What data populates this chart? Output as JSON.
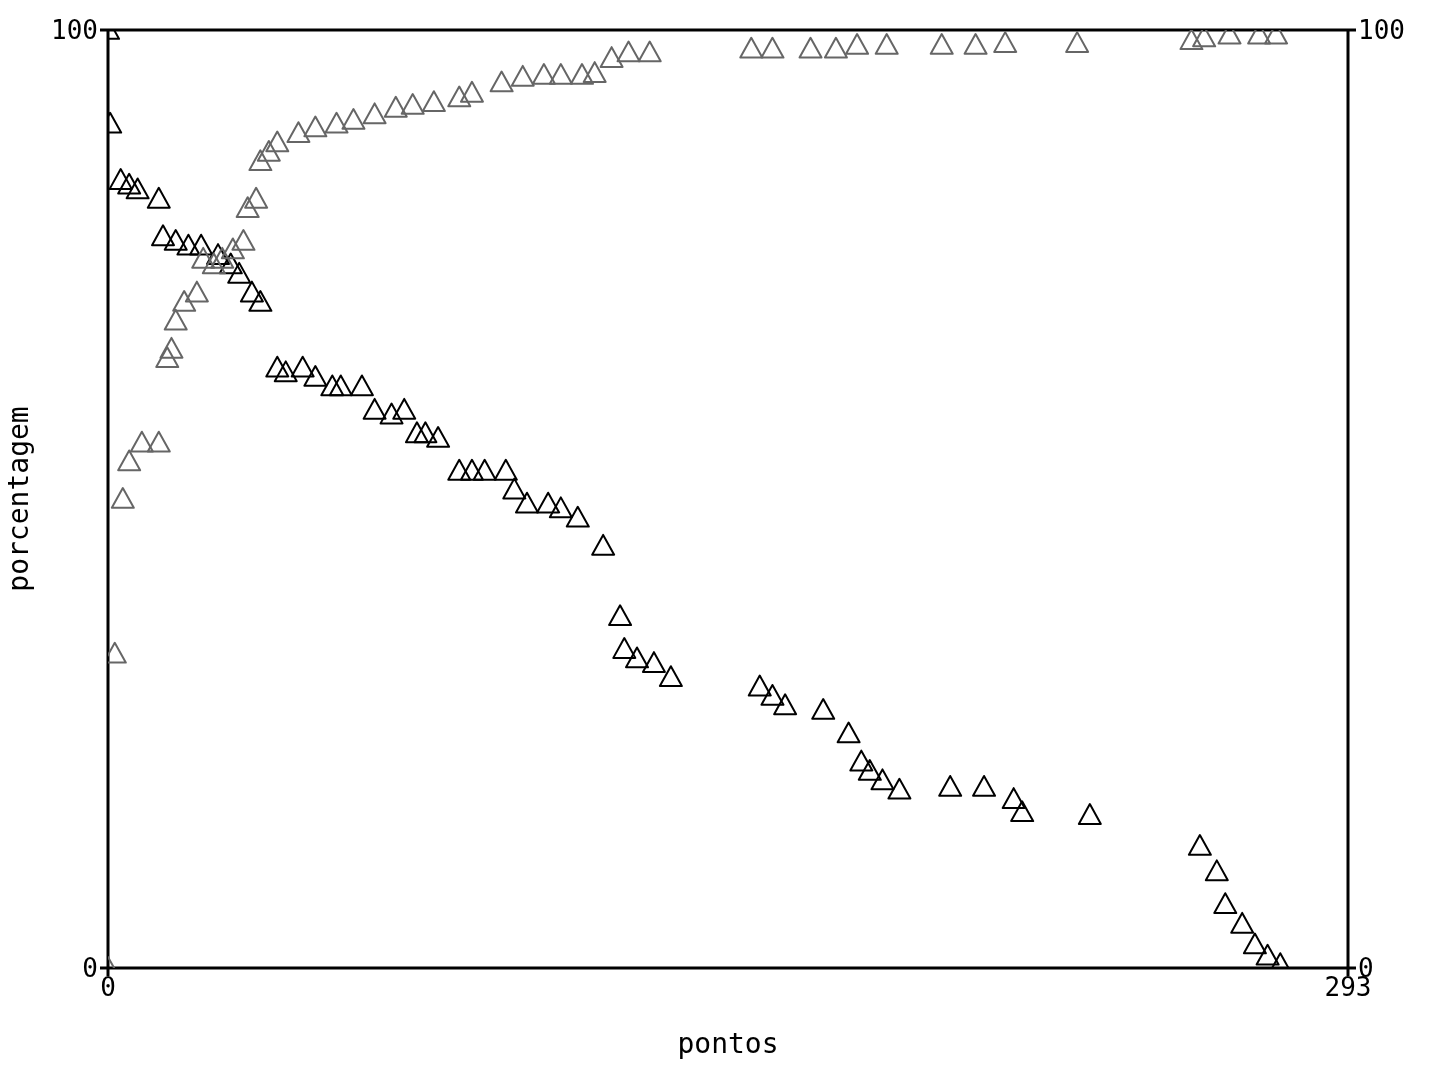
{
  "chart_data": {
    "type": "scatter",
    "xlabel": "pontos",
    "ylabel": "porcentagem",
    "xlim": [
      0,
      293
    ],
    "xticks": [
      0,
      293
    ],
    "ylim": [
      0,
      100
    ],
    "yticks": [
      0,
      100
    ],
    "y2lim": [
      0,
      100
    ],
    "y2ticks": [
      0,
      100
    ],
    "marker": "triangle",
    "legend": false,
    "series": [
      {
        "color": "#000000",
        "x": [
          0,
          0.5,
          3,
          5,
          7,
          12,
          13,
          16,
          19,
          22,
          26,
          29,
          31,
          34,
          36,
          40,
          42,
          46,
          49,
          53,
          55,
          60,
          63,
          67,
          70,
          73,
          75,
          78,
          83,
          86,
          89,
          94,
          96,
          99,
          104,
          107,
          111,
          117,
          121,
          122,
          125,
          129,
          133,
          154,
          157,
          160,
          169,
          175,
          178,
          180,
          183,
          187,
          199,
          207,
          214,
          216,
          232,
          258,
          262,
          264,
          268,
          271,
          274,
          277
        ],
        "values": [
          100,
          90,
          84,
          83.5,
          83,
          82,
          78,
          77.5,
          77,
          77,
          76,
          75,
          74,
          72,
          71,
          64,
          63.5,
          64,
          63,
          62,
          62,
          62,
          59.5,
          59,
          59.5,
          57,
          57,
          56.5,
          53,
          53,
          53,
          53,
          51,
          49.5,
          49.5,
          49,
          48,
          45,
          37.5,
          34,
          33,
          32.5,
          31,
          30,
          29,
          28,
          27.5,
          25,
          22,
          21,
          20,
          19,
          19.3,
          19.3,
          18,
          16.6,
          16.3,
          13,
          10.3,
          6.8,
          4.7,
          2.5,
          1.3,
          0.4
        ]
      },
      {
        "color": "#666666",
        "x": [
          0,
          1.6,
          3.5,
          5,
          8,
          12,
          14,
          15,
          16,
          18,
          21,
          22.5,
          25,
          27,
          29.5,
          32,
          33,
          35,
          36,
          38,
          40,
          45,
          49,
          54,
          58,
          63,
          68,
          72,
          77,
          83,
          86,
          93,
          98,
          103,
          107,
          112,
          115,
          119,
          123,
          128,
          152,
          157,
          166,
          172,
          177,
          184,
          197,
          205,
          212,
          229,
          256,
          259,
          265,
          272,
          276
        ],
        "values": [
          0,
          33.5,
          50,
          54,
          56,
          56,
          65,
          66,
          69,
          71,
          72,
          75.6,
          75,
          75.6,
          76.6,
          77.5,
          81,
          82,
          86,
          87,
          88,
          89,
          89.6,
          90,
          90.4,
          91,
          91.7,
          92,
          92.3,
          92.8,
          93.3,
          94.4,
          95,
          95.2,
          95.2,
          95.2,
          95.4,
          97,
          97.6,
          97.6,
          98,
          98,
          98,
          98,
          98.4,
          98.4,
          98.4,
          98.4,
          98.6,
          98.6,
          98.9,
          99.2,
          99.5,
          99.5,
          99.5
        ]
      }
    ]
  }
}
